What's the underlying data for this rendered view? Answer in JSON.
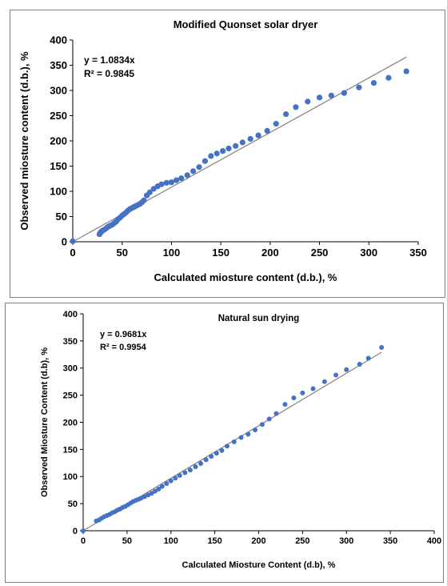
{
  "chart_data": [
    {
      "type": "scatter",
      "title": "Modified Quonset solar dryer",
      "xlabel": "Calculated miosture content (d.b.), %",
      "ylabel": "Observed miosture content (d.b.), %",
      "xlim": [
        0,
        350
      ],
      "ylim": [
        0,
        400
      ],
      "xticks": [
        0,
        50,
        100,
        150,
        200,
        250,
        300,
        350
      ],
      "yticks": [
        0,
        50,
        100,
        150,
        200,
        250,
        300,
        350,
        400
      ],
      "grid": false,
      "equation": "y = 1.0834x",
      "r2": "R² = 0.9845",
      "trendline": {
        "slope": 1.0834,
        "x_range": [
          0,
          338
        ]
      },
      "color": "#4472c4",
      "points": [
        [
          0,
          1
        ],
        [
          27,
          15
        ],
        [
          28,
          18
        ],
        [
          29,
          20
        ],
        [
          30,
          22
        ],
        [
          32,
          24
        ],
        [
          34,
          27
        ],
        [
          36,
          30
        ],
        [
          38,
          32
        ],
        [
          40,
          34
        ],
        [
          42,
          37
        ],
        [
          44,
          40
        ],
        [
          46,
          45
        ],
        [
          48,
          48
        ],
        [
          50,
          52
        ],
        [
          52,
          55
        ],
        [
          54,
          58
        ],
        [
          56,
          62
        ],
        [
          58,
          65
        ],
        [
          60,
          67
        ],
        [
          62,
          69
        ],
        [
          64,
          71
        ],
        [
          66,
          73
        ],
        [
          68,
          75
        ],
        [
          70,
          78
        ],
        [
          72,
          82
        ],
        [
          75,
          92
        ],
        [
          78,
          98
        ],
        [
          82,
          105
        ],
        [
          86,
          110
        ],
        [
          90,
          114
        ],
        [
          95,
          117
        ],
        [
          100,
          118
        ],
        [
          105,
          122
        ],
        [
          110,
          126
        ],
        [
          116,
          132
        ],
        [
          122,
          140
        ],
        [
          128,
          148
        ],
        [
          134,
          160
        ],
        [
          140,
          170
        ],
        [
          146,
          175
        ],
        [
          152,
          180
        ],
        [
          158,
          185
        ],
        [
          165,
          190
        ],
        [
          172,
          197
        ],
        [
          180,
          204
        ],
        [
          188,
          211
        ],
        [
          197,
          220
        ],
        [
          206,
          234
        ],
        [
          216,
          253
        ],
        [
          226,
          267
        ],
        [
          238,
          278
        ],
        [
          250,
          286
        ],
        [
          262,
          290
        ],
        [
          275,
          295
        ],
        [
          290,
          306
        ],
        [
          305,
          315
        ],
        [
          320,
          325
        ],
        [
          338,
          338
        ]
      ]
    },
    {
      "type": "scatter",
      "title": "Natural sun drying",
      "xlabel": "Calculated Miosture Content (d.b), %",
      "ylabel": "Observed Miosture Content (d.b), %",
      "xlim": [
        0,
        400
      ],
      "ylim": [
        0,
        400
      ],
      "xticks": [
        0,
        50,
        100,
        150,
        200,
        250,
        300,
        350,
        400
      ],
      "yticks": [
        0,
        50,
        100,
        150,
        200,
        250,
        300,
        350,
        400
      ],
      "grid": false,
      "equation": "y = 0.9681x",
      "r2": "R² = 0.9954",
      "trendline": {
        "slope": 0.9681,
        "x_range": [
          0,
          340
        ]
      },
      "color": "#4472c4",
      "points": [
        [
          0,
          0
        ],
        [
          15,
          18
        ],
        [
          18,
          20
        ],
        [
          21,
          23
        ],
        [
          24,
          26
        ],
        [
          27,
          28
        ],
        [
          30,
          30
        ],
        [
          33,
          33
        ],
        [
          36,
          35
        ],
        [
          39,
          38
        ],
        [
          42,
          40
        ],
        [
          45,
          43
        ],
        [
          48,
          45
        ],
        [
          51,
          48
        ],
        [
          54,
          51
        ],
        [
          57,
          54
        ],
        [
          60,
          56
        ],
        [
          63,
          58
        ],
        [
          66,
          60
        ],
        [
          70,
          63
        ],
        [
          74,
          66
        ],
        [
          78,
          69
        ],
        [
          82,
          73
        ],
        [
          86,
          77
        ],
        [
          90,
          82
        ],
        [
          95,
          87
        ],
        [
          100,
          92
        ],
        [
          105,
          97
        ],
        [
          110,
          102
        ],
        [
          116,
          107
        ],
        [
          122,
          112
        ],
        [
          128,
          118
        ],
        [
          134,
          124
        ],
        [
          140,
          131
        ],
        [
          146,
          137
        ],
        [
          152,
          143
        ],
        [
          158,
          148
        ],
        [
          164,
          156
        ],
        [
          172,
          164
        ],
        [
          180,
          172
        ],
        [
          188,
          178
        ],
        [
          196,
          186
        ],
        [
          204,
          196
        ],
        [
          212,
          206
        ],
        [
          220,
          216
        ],
        [
          230,
          233
        ],
        [
          240,
          245
        ],
        [
          250,
          254
        ],
        [
          262,
          262
        ],
        [
          275,
          275
        ],
        [
          288,
          287
        ],
        [
          300,
          297
        ],
        [
          315,
          307
        ],
        [
          325,
          318
        ],
        [
          340,
          338
        ]
      ]
    }
  ]
}
